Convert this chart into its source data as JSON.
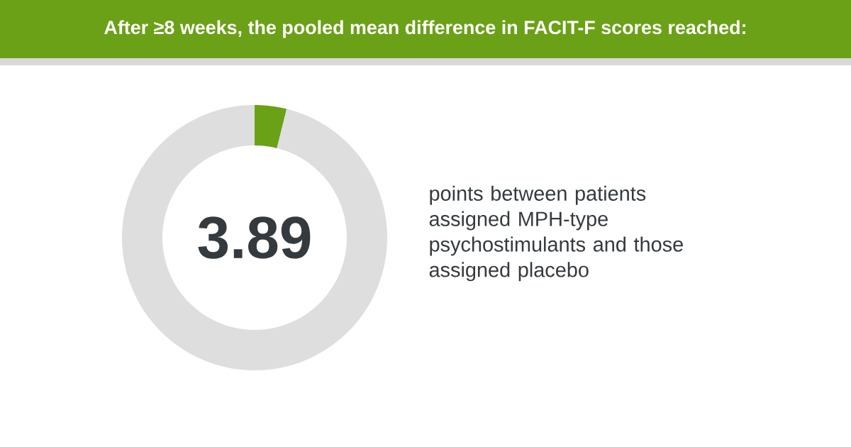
{
  "chart_data": {
    "type": "donut",
    "title": "After ≥8 weeks, the pooled mean difference in FACIT-F scores reached:",
    "categories": [
      null,
      null
    ],
    "values": [
      3.89,
      96.11
    ],
    "colors": [
      "#6aa116",
      "#dedede"
    ],
    "annotations": [
      "3.89",
      "points between patients assigned MPH-type psychostimulants and those assigned placebo"
    ]
  }
}
